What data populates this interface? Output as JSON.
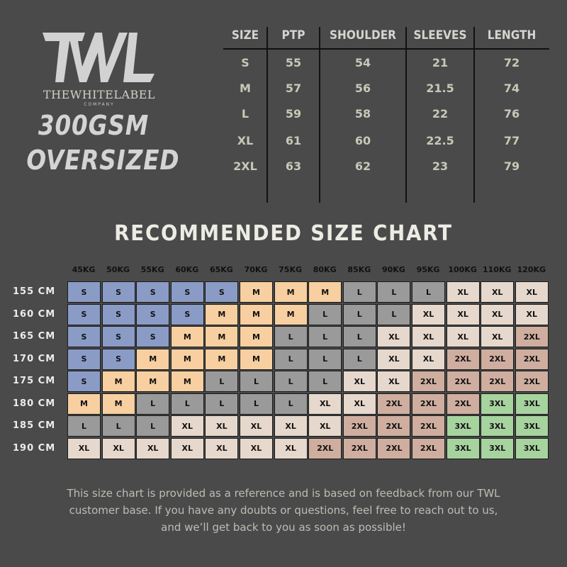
{
  "brand": {
    "logo_letters": "TWL",
    "name": "THEWHITELABEL",
    "sub": "COMPANY",
    "product_line1": "300GSM",
    "product_line2": "OVERSIZED"
  },
  "measurements": {
    "headers": [
      "SIZE",
      "PTP",
      "SHOULDER",
      "SLEEVES",
      "LENGTH"
    ],
    "rows": [
      [
        "S",
        "55",
        "54",
        "21",
        "72"
      ],
      [
        "M",
        "57",
        "56",
        "21.5",
        "74"
      ],
      [
        "L",
        "59",
        "58",
        "22",
        "76"
      ],
      [
        "XL",
        "61",
        "60",
        "22.5",
        "77"
      ],
      [
        "2XL",
        "63",
        "62",
        "23",
        "79"
      ]
    ]
  },
  "recommended": {
    "title": "RECOMMENDED SIZE CHART",
    "weights": [
      "45KG",
      "50KG",
      "55KG",
      "60KG",
      "65KG",
      "70KG",
      "75KG",
      "80KG",
      "85KG",
      "90KG",
      "95KG",
      "100KG",
      "110KG",
      "120KG"
    ],
    "heights": [
      "155 CM",
      "160 CM",
      "165 CM",
      "170 CM",
      "175 CM",
      "180 CM",
      "185 CM",
      "190 CM"
    ],
    "grid": [
      [
        "S",
        "S",
        "S",
        "S",
        "S",
        "M",
        "M",
        "M",
        "L",
        "L",
        "L",
        "XL",
        "XL",
        "XL"
      ],
      [
        "S",
        "S",
        "S",
        "S",
        "M",
        "M",
        "M",
        "L",
        "L",
        "L",
        "XL",
        "XL",
        "XL",
        "XL"
      ],
      [
        "S",
        "S",
        "S",
        "M",
        "M",
        "M",
        "L",
        "L",
        "L",
        "XL",
        "XL",
        "XL",
        "XL",
        "2XL"
      ],
      [
        "S",
        "S",
        "M",
        "M",
        "M",
        "M",
        "L",
        "L",
        "L",
        "XL",
        "XL",
        "2XL",
        "2XL",
        "2XL"
      ],
      [
        "S",
        "M",
        "M",
        "M",
        "L",
        "L",
        "L",
        "L",
        "XL",
        "XL",
        "2XL",
        "2XL",
        "2XL",
        "2XL"
      ],
      [
        "M",
        "M",
        "L",
        "L",
        "L",
        "L",
        "L",
        "XL",
        "XL",
        "2XL",
        "2XL",
        "2XL",
        "3XL",
        "3XL"
      ],
      [
        "L",
        "L",
        "L",
        "XL",
        "XL",
        "XL",
        "XL",
        "XL",
        "2XL",
        "2XL",
        "2XL",
        "3XL",
        "3XL",
        "3XL"
      ],
      [
        "XL",
        "XL",
        "XL",
        "XL",
        "XL",
        "XL",
        "XL",
        "2XL",
        "2XL",
        "2XL",
        "2XL",
        "3XL",
        "3XL",
        "3XL"
      ]
    ],
    "colors": {
      "S": "#8a9cc6",
      "M": "#f7cfa0",
      "L": "#9a9a9a",
      "XL": "#e6d8cc",
      "2XL": "#cfaea0",
      "3XL": "#a7d39f"
    }
  },
  "footer": [
    "This size chart is provided as a reference and is based on feedback from our TWL",
    "customer base. If you have any doubts or questions, feel free to reach out to us,",
    "and we’ll get back to you as soon as possible!"
  ]
}
